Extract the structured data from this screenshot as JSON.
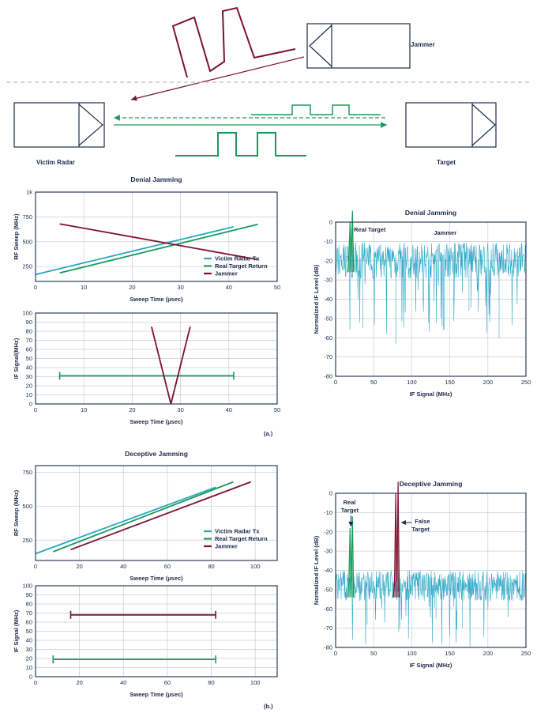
{
  "colors": {
    "radar": "#24a6bf",
    "target": "#1a9a5a",
    "jammer": "#7c1232",
    "frame": "#1b2a4a",
    "grid": "#c9ced6",
    "noise": "#35a9c9"
  },
  "diagram": {
    "jammer_label": "Jammer",
    "radar_label": "Victim Radar",
    "target_label": "Target"
  },
  "panel_labels": {
    "a": "(a.)",
    "b": "(b.)"
  },
  "chart_data": [
    {
      "id": "denial-rf",
      "type": "line",
      "title": "Denial Jamming",
      "xlabel": "Sweep Time (µsec)",
      "ylabel": "RF Sweep (MHz)",
      "xlim": [
        0,
        50
      ],
      "ylim": [
        100,
        1000
      ],
      "xticks": [
        0,
        10,
        20,
        30,
        40,
        50
      ],
      "yticks": [
        250,
        500,
        750,
        1000
      ],
      "ytick_labels": [
        "250",
        "500",
        "750",
        "1k"
      ],
      "grid": true,
      "legend": "lower-right",
      "series": [
        {
          "name": "Victim Radar Tx",
          "color": "radar",
          "x": [
            0,
            41
          ],
          "y": [
            170,
            650
          ]
        },
        {
          "name": "Real Target Return",
          "color": "target",
          "x": [
            5,
            46
          ],
          "y": [
            185,
            675
          ]
        },
        {
          "name": "Jammer",
          "color": "jammer",
          "x": [
            5,
            46
          ],
          "y": [
            680,
            320
          ]
        }
      ]
    },
    {
      "id": "denial-if",
      "type": "line",
      "title": "",
      "xlabel": "Sweep Time (µsec)",
      "ylabel": "IF Signal(MHz)",
      "xlim": [
        0,
        50
      ],
      "ylim": [
        0,
        100
      ],
      "xticks": [
        0,
        10,
        20,
        30,
        40,
        50
      ],
      "yticks": [
        0,
        10,
        20,
        30,
        40,
        50,
        60,
        70,
        80,
        90,
        100
      ],
      "grid": true,
      "series": [
        {
          "color": "target",
          "x": [
            5,
            41
          ],
          "y": [
            31,
            31
          ],
          "capped": true
        },
        {
          "color": "jammer",
          "x": [
            24,
            28,
            32
          ],
          "y": [
            85,
            0,
            85
          ]
        }
      ]
    },
    {
      "id": "denial-spectrum",
      "type": "line",
      "title": "Denial Jamming",
      "xlabel": "IF Signal (MHz)",
      "ylabel": "Normalized IF Level (dB)",
      "xlim": [
        0,
        250
      ],
      "ylim": [
        -80,
        0
      ],
      "xticks": [
        0,
        50,
        100,
        150,
        200,
        250
      ],
      "yticks": [
        0,
        -10,
        -20,
        -30,
        -40,
        -50,
        -60,
        -70,
        -80
      ],
      "grid": true,
      "noise_floor": {
        "from": 0,
        "to": 250,
        "base": -20,
        "spread": 12,
        "dips": [
          -55,
          -63,
          -52,
          -46,
          -60
        ]
      },
      "peaks": [
        {
          "x": 20,
          "y": 0,
          "color": "target",
          "kind": "real"
        }
      ],
      "annotations": [
        "Real Target",
        "Jammer"
      ]
    },
    {
      "id": "deceptive-rf",
      "type": "line",
      "title": "Deceptive Jamming",
      "xlabel": "Sweep Time (µsec)",
      "ylabel": "RF Sweep (MHz)",
      "xlim": [
        0,
        110
      ],
      "ylim": [
        100,
        800
      ],
      "xticks": [
        0,
        20,
        40,
        60,
        80,
        100
      ],
      "yticks": [
        250,
        500,
        750
      ],
      "ytick_labels": [
        "250",
        "500",
        "750"
      ],
      "grid": true,
      "legend": "lower-right",
      "series": [
        {
          "name": "Victim Radar Tx",
          "color": "radar",
          "x": [
            0,
            82
          ],
          "y": [
            150,
            640
          ]
        },
        {
          "name": "Real Target Return",
          "color": "target",
          "x": [
            8,
            90
          ],
          "y": [
            165,
            680
          ]
        },
        {
          "name": "Jammer",
          "color": "jammer",
          "x": [
            16,
            98
          ],
          "y": [
            180,
            680
          ]
        }
      ]
    },
    {
      "id": "deceptive-if",
      "type": "line",
      "title": "",
      "xlabel": "Sweep Time (µsec)",
      "ylabel": "IF Signal (MHz)",
      "xlim": [
        0,
        110
      ],
      "ylim": [
        0,
        100
      ],
      "xticks": [
        0,
        20,
        40,
        60,
        80,
        100
      ],
      "yticks": [
        0,
        10,
        20,
        30,
        40,
        50,
        60,
        70,
        80,
        90,
        100
      ],
      "grid": true,
      "series": [
        {
          "color": "jammer",
          "x": [
            16,
            82
          ],
          "y": [
            68,
            68
          ],
          "capped": true
        },
        {
          "color": "target",
          "x": [
            8,
            82
          ],
          "y": [
            19,
            19
          ],
          "capped": true
        }
      ]
    },
    {
      "id": "deceptive-spectrum",
      "type": "line",
      "title": "Deceptive Jamming",
      "xlabel": "IF Signal (MHz)",
      "ylabel": "Normalized IF Level (dB)",
      "xlim": [
        0,
        250
      ],
      "ylim": [
        -80,
        0
      ],
      "xticks": [
        0,
        50,
        100,
        150,
        200,
        250
      ],
      "yticks": [
        0,
        -10,
        -20,
        -30,
        -40,
        -50,
        -60,
        -70,
        -80
      ],
      "grid": true,
      "noise_floor": {
        "from": 0,
        "to": 250,
        "base": -48,
        "spread": 10,
        "dips": [
          -68,
          -72,
          -65,
          -70
        ]
      },
      "peaks": [
        {
          "x": 20,
          "y": -18,
          "color": "target",
          "kind": "real"
        },
        {
          "x": 80,
          "y": 0,
          "color": "jammer",
          "kind": "false"
        }
      ],
      "annotations": [
        "Real Target",
        "False Target"
      ]
    }
  ]
}
